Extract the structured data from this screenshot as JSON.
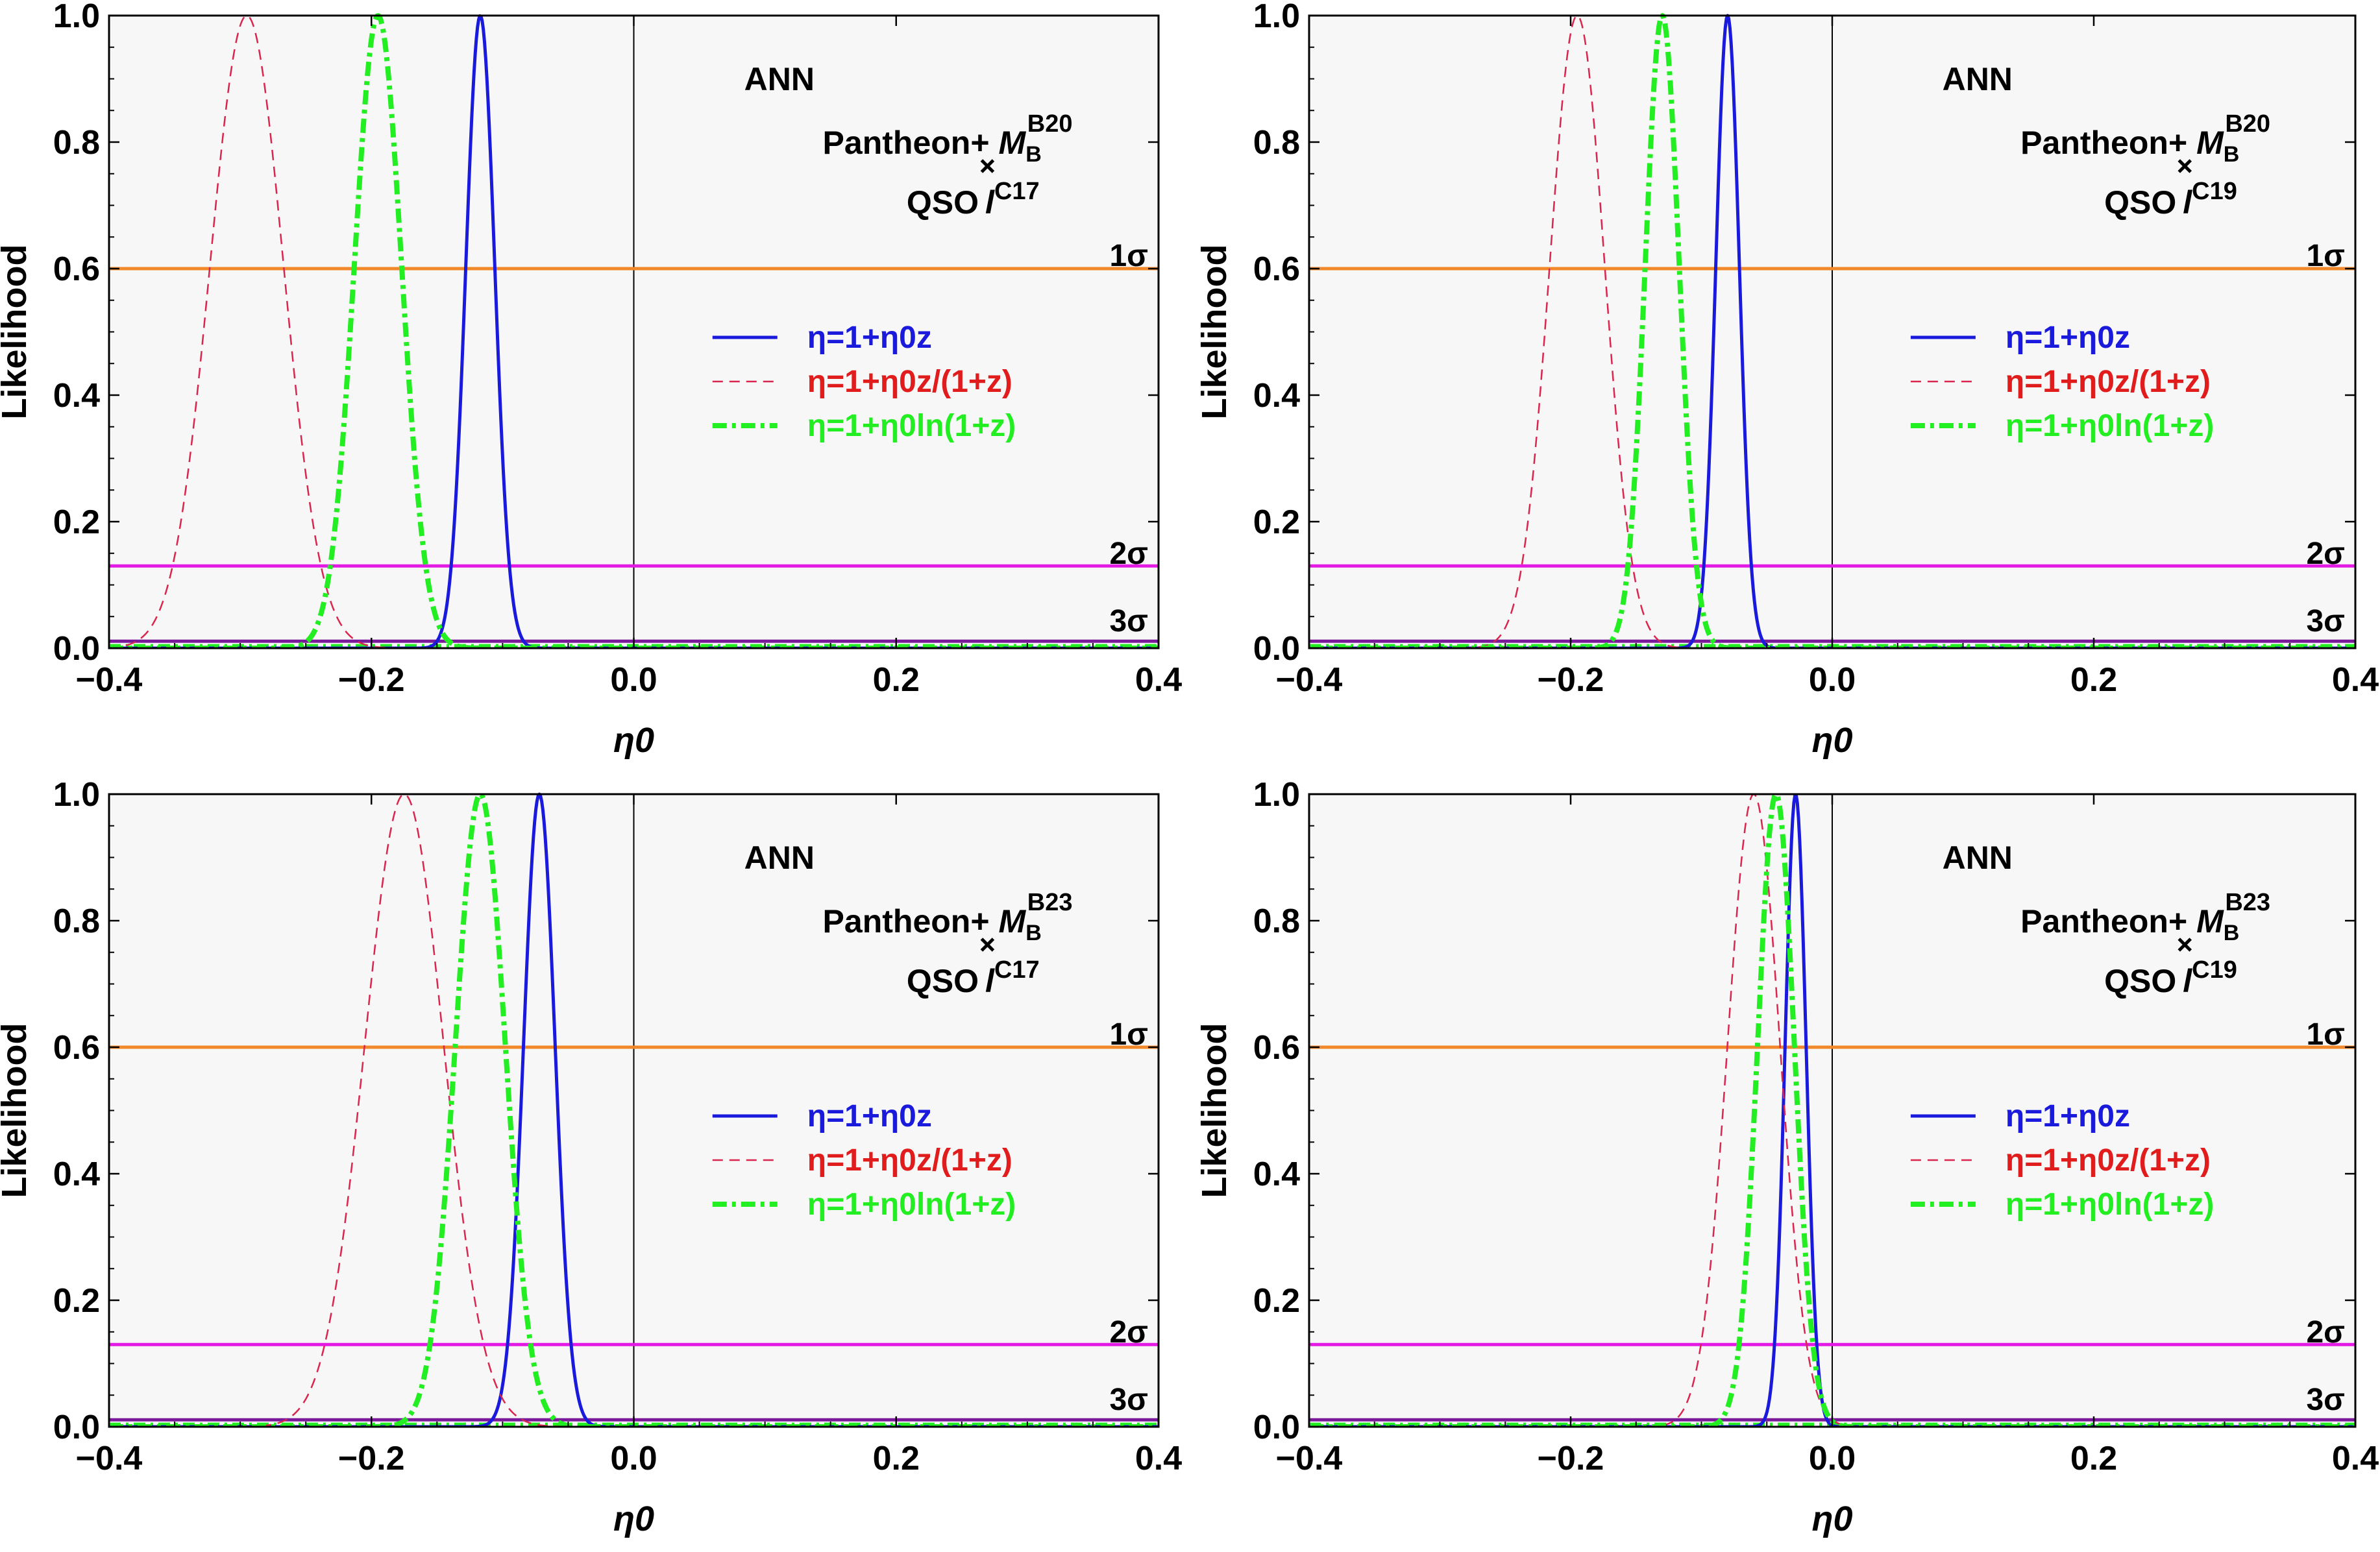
{
  "chart_data": [
    {
      "type": "line",
      "annotation_method": "ANN",
      "annotation_dataset": "Pantheon+",
      "annotation_M_sub": "B",
      "annotation_M_sup": "B20",
      "annotation_qso": "QSO",
      "annotation_l_sup": "C17",
      "xlabel": "η0",
      "ylabel": "Likelihood",
      "xlim": [
        -0.4,
        0.4
      ],
      "ylim": [
        0,
        1
      ],
      "xticks": [
        "−0.4",
        "−0.2",
        "0.0",
        "0.2",
        "0.4"
      ],
      "yticks": [
        "0.0",
        "0.2",
        "0.4",
        "0.6",
        "0.8",
        "1.0"
      ],
      "series": [
        {
          "name": "η=1+η0z",
          "style": "solid",
          "color": "#1a1adc",
          "mu": -0.117,
          "sigma": 0.011
        },
        {
          "name": "η=1+η0z/(1+z)",
          "style": "dashed",
          "color": "#d8264f",
          "mu": -0.295,
          "sigma": 0.028
        },
        {
          "name": "η=1+η0ln(1+z)",
          "style": "dashdot",
          "color": "#22ee22",
          "mu": -0.195,
          "sigma": 0.018
        }
      ],
      "hlines": [
        {
          "label": "1σ",
          "y": 0.6,
          "color": "#f0882a"
        },
        {
          "label": "2σ",
          "y": 0.13,
          "color": "#e31ae3"
        },
        {
          "label": "3σ",
          "y": 0.011,
          "color": "#7a1a9a"
        }
      ],
      "vline_x": 0.0
    },
    {
      "type": "line",
      "annotation_method": "ANN",
      "annotation_dataset": "Pantheon+",
      "annotation_M_sub": "B",
      "annotation_M_sup": "B20",
      "annotation_qso": "QSO",
      "annotation_l_sup": "C19",
      "xlabel": "η0",
      "ylabel": "Likelihood",
      "xlim": [
        -0.4,
        0.4
      ],
      "ylim": [
        0,
        1
      ],
      "xticks": [
        "−0.4",
        "−0.2",
        "0.0",
        "0.2",
        "0.4"
      ],
      "yticks": [
        "0.0",
        "0.2",
        "0.4",
        "0.6",
        "0.8",
        "1.0"
      ],
      "series": [
        {
          "name": "η=1+η0z",
          "style": "solid",
          "color": "#1a1adc",
          "mu": -0.08,
          "sigma": 0.009
        },
        {
          "name": "η=1+η0z/(1+z)",
          "style": "dashed",
          "color": "#d8264f",
          "mu": -0.195,
          "sigma": 0.021
        },
        {
          "name": "η=1+η0ln(1+z)",
          "style": "dashdot",
          "color": "#22ee22",
          "mu": -0.13,
          "sigma": 0.013
        }
      ],
      "hlines": [
        {
          "label": "1σ",
          "y": 0.6,
          "color": "#f0882a"
        },
        {
          "label": "2σ",
          "y": 0.13,
          "color": "#e31ae3"
        },
        {
          "label": "3σ",
          "y": 0.011,
          "color": "#7a1a9a"
        }
      ],
      "vline_x": 0.0
    },
    {
      "type": "line",
      "annotation_method": "ANN",
      "annotation_dataset": "Pantheon+",
      "annotation_M_sub": "B",
      "annotation_M_sup": "B23",
      "annotation_qso": "QSO",
      "annotation_l_sup": "C17",
      "xlabel": "η0",
      "ylabel": "Likelihood",
      "xlim": [
        -0.4,
        0.4
      ],
      "ylim": [
        0,
        1
      ],
      "xticks": [
        "−0.4",
        "−0.2",
        "0.0",
        "0.2",
        "0.4"
      ],
      "yticks": [
        "0.0",
        "0.2",
        "0.4",
        "0.6",
        "0.8",
        "1.0"
      ],
      "series": [
        {
          "name": "η=1+η0z",
          "style": "solid",
          "color": "#1a1adc",
          "mu": -0.072,
          "sigma": 0.012
        },
        {
          "name": "η=1+η0z/(1+z)",
          "style": "dashed",
          "color": "#d8264f",
          "mu": -0.175,
          "sigma": 0.03
        },
        {
          "name": "η=1+η0ln(1+z)",
          "style": "dashdot",
          "color": "#22ee22",
          "mu": -0.117,
          "sigma": 0.019
        }
      ],
      "hlines": [
        {
          "label": "1σ",
          "y": 0.6,
          "color": "#f0882a"
        },
        {
          "label": "2σ",
          "y": 0.13,
          "color": "#e31ae3"
        },
        {
          "label": "3σ",
          "y": 0.011,
          "color": "#7a1a9a"
        }
      ],
      "vline_x": 0.0
    },
    {
      "type": "line",
      "annotation_method": "ANN",
      "annotation_dataset": "Pantheon+",
      "annotation_M_sub": "B",
      "annotation_M_sup": "B23",
      "annotation_qso": "QSO",
      "annotation_l_sup": "C19",
      "xlabel": "η0",
      "ylabel": "Likelihood",
      "xlim": [
        -0.4,
        0.4
      ],
      "ylim": [
        0,
        1
      ],
      "xticks": [
        "−0.4",
        "−0.2",
        "0.0",
        "0.2",
        "0.4"
      ],
      "yticks": [
        "0.0",
        "0.2",
        "0.4",
        "0.6",
        "0.8",
        "1.0"
      ],
      "series": [
        {
          "name": "η=1+η0z",
          "style": "solid",
          "color": "#1a1adc",
          "mu": -0.028,
          "sigma": 0.008
        },
        {
          "name": "η=1+η0z/(1+z)",
          "style": "dashed",
          "color": "#d8264f",
          "mu": -0.06,
          "sigma": 0.02
        },
        {
          "name": "η=1+η0ln(1+z)",
          "style": "dashdot",
          "color": "#22ee22",
          "mu": -0.043,
          "sigma": 0.014
        }
      ],
      "hlines": [
        {
          "label": "1σ",
          "y": 0.6,
          "color": "#f0882a"
        },
        {
          "label": "2σ",
          "y": 0.13,
          "color": "#e31ae3"
        },
        {
          "label": "3σ",
          "y": 0.011,
          "color": "#7a1a9a"
        }
      ],
      "vline_x": 0.0
    }
  ]
}
